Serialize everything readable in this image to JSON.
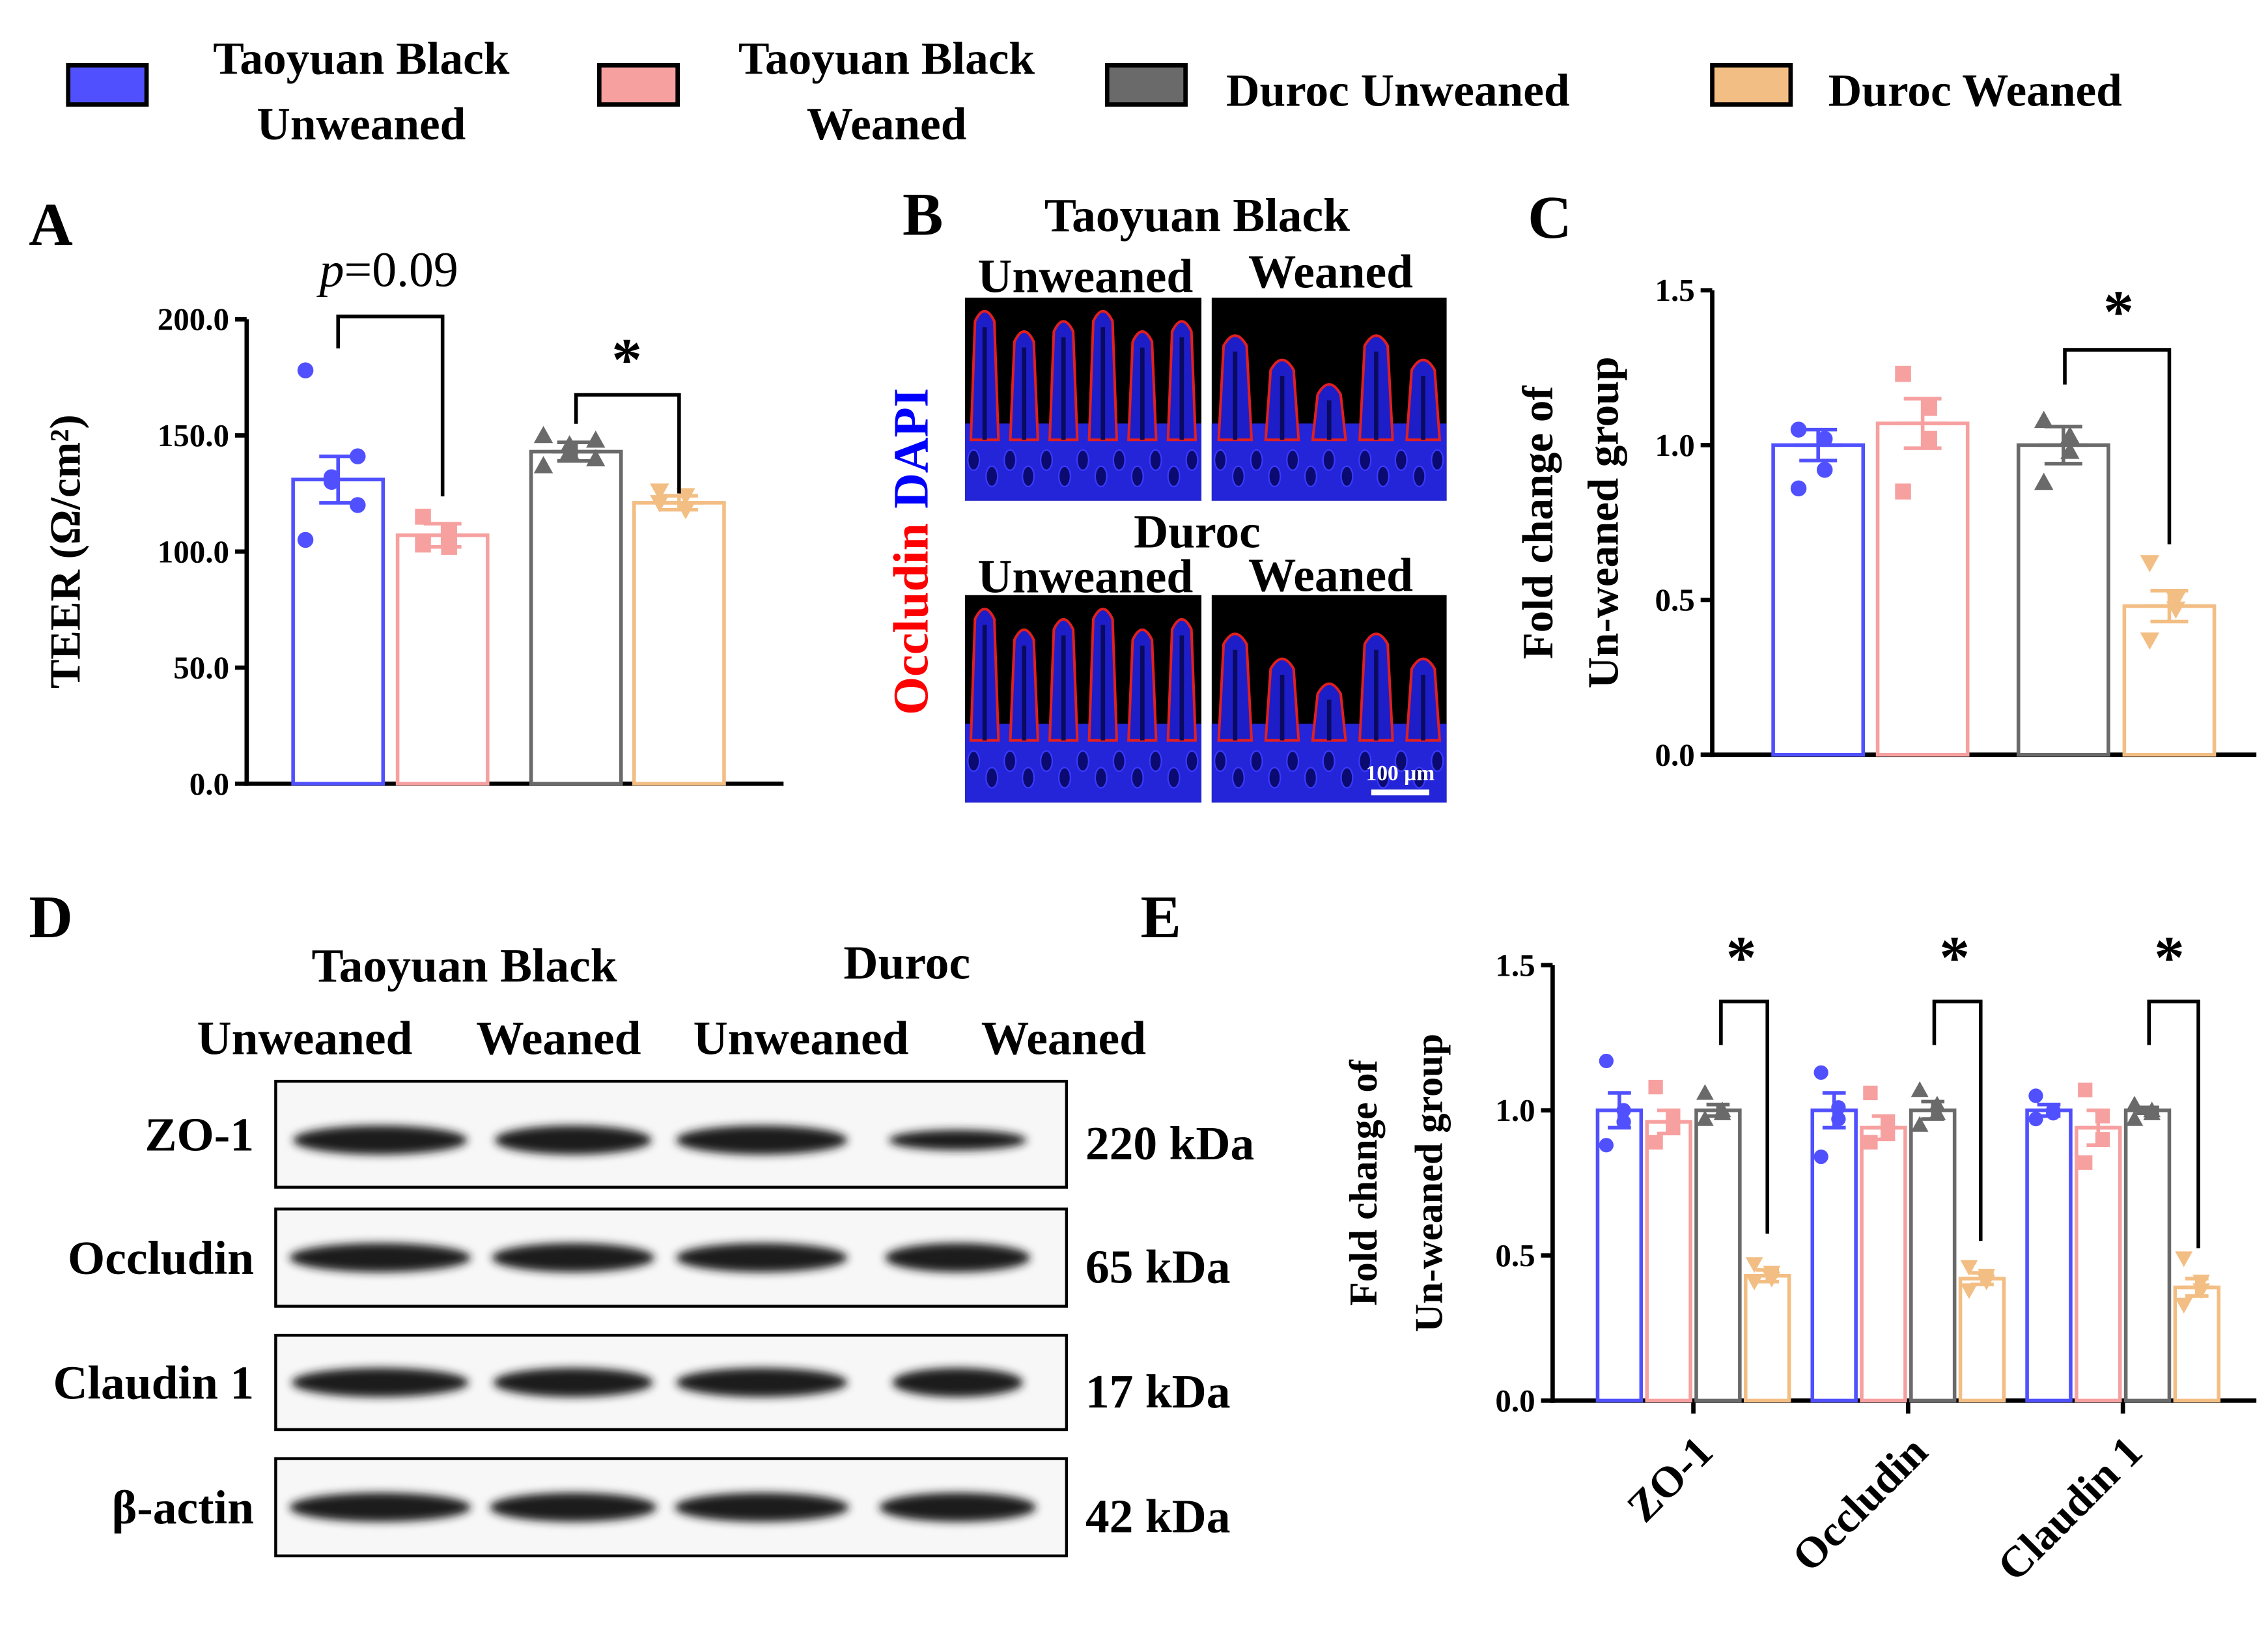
{
  "legend": {
    "series": [
      {
        "name": "Taoyuan Black Unweaned",
        "color": "#5050ff"
      },
      {
        "name": "Taoyuan Black Weaned",
        "color": "#f7a0a0"
      },
      {
        "name": "Duroc Unweaned",
        "color": "#6a6a6a"
      },
      {
        "name": "Duroc Weaned",
        "color": "#f3be84"
      }
    ]
  },
  "panels": [
    "A",
    "B",
    "C",
    "D",
    "E"
  ],
  "chart_data": [
    {
      "type": "bar",
      "ylabel": "TEER (Ω/cm²)",
      "ylim": [
        0,
        200
      ],
      "yticks": [
        {
          "value": 0,
          "label": "0.0"
        },
        {
          "value": 50,
          "label": "50.0"
        },
        {
          "value": 100,
          "label": "100.0"
        },
        {
          "value": 150,
          "label": "150.0"
        },
        {
          "value": 200,
          "label": "200.0"
        }
      ],
      "series": [
        {
          "values": [
            131
          ],
          "errors": [
            10
          ],
          "points": [
            [
              178,
              141,
              132,
              130,
              120,
              105
            ]
          ]
        },
        {
          "values": [
            107
          ],
          "errors": [
            5
          ],
          "points": [
            [
              115,
              108,
              102,
              103
            ]
          ]
        },
        {
          "values": [
            143
          ],
          "errors": [
            4
          ],
          "points": [
            [
              150,
              148,
              146,
              143,
              140,
              137
            ]
          ]
        },
        {
          "values": [
            121
          ],
          "errors": [
            3
          ],
          "points": [
            [
              126,
              124,
              118,
              121
            ]
          ]
        }
      ],
      "annotations": [
        {
          "italic": "p",
          "text": "=0.09"
        },
        {
          "text": "*"
        }
      ]
    },
    {
      "type": "bar",
      "ylabel": [
        "Fold change of",
        "Un-weaned group"
      ],
      "ylim": [
        0,
        1.5
      ],
      "yticks": [
        {
          "value": 0,
          "label": "0.0"
        },
        {
          "value": 0.5,
          "label": "0.5"
        },
        {
          "value": 1,
          "label": "1.0"
        },
        {
          "value": 1.5,
          "label": "1.5"
        }
      ],
      "series": [
        {
          "values": [
            1.0
          ],
          "errors": [
            0.05
          ],
          "points": [
            [
              1.05,
              1.02,
              0.92,
              0.86
            ]
          ]
        },
        {
          "values": [
            1.07
          ],
          "errors": [
            0.08
          ],
          "points": [
            [
              1.23,
              1.12,
              1.02,
              0.85
            ]
          ]
        },
        {
          "values": [
            1.0
          ],
          "errors": [
            0.06
          ],
          "points": [
            [
              1.08,
              1.03,
              0.98,
              0.88
            ]
          ]
        },
        {
          "values": [
            0.48
          ],
          "errors": [
            0.05
          ],
          "points": [
            [
              0.62,
              0.5,
              0.47,
              0.37
            ]
          ]
        }
      ],
      "annotations": [
        {
          "text": "*"
        }
      ]
    },
    {
      "type": "bar",
      "ylabel": [
        "Fold change of",
        "Un-weaned group"
      ],
      "ylim": [
        0,
        1.5
      ],
      "yticks": [
        {
          "value": 0,
          "label": "0.0"
        },
        {
          "value": 0.5,
          "label": "0.5"
        },
        {
          "value": 1,
          "label": "1.0"
        },
        {
          "value": 1.5,
          "label": "1.5"
        }
      ],
      "categories": [
        "ZO-1",
        "Occludin",
        "Claudin 1"
      ],
      "series": [
        {
          "values": [
            1.0,
            1.0,
            1.0
          ],
          "errors": [
            0.06,
            0.06,
            0.02
          ],
          "points": [
            [
              1.17,
              1.0,
              0.96,
              0.88
            ],
            [
              1.13,
              1.01,
              0.97,
              0.84
            ],
            [
              1.05,
              1.0,
              0.99,
              0.97
            ]
          ]
        },
        {
          "values": [
            0.96,
            0.94,
            0.94
          ],
          "errors": [
            0.04,
            0.04,
            0.06
          ],
          "points": [
            [
              1.08,
              0.98,
              0.94,
              0.89
            ],
            [
              1.06,
              0.95,
              0.92,
              0.89
            ],
            [
              1.07,
              0.98,
              0.9,
              0.82
            ]
          ]
        },
        {
          "values": [
            1.0,
            1.0,
            1.0
          ],
          "errors": [
            0.02,
            0.03,
            0.01
          ],
          "points": [
            [
              1.06,
              1.0,
              0.99,
              0.97
            ],
            [
              1.07,
              1.02,
              0.99,
              0.95
            ],
            [
              1.02,
              1.0,
              0.99,
              0.97
            ]
          ]
        },
        {
          "values": [
            0.43,
            0.42,
            0.39
          ],
          "errors": [
            0.02,
            0.02,
            0.03
          ],
          "points": [
            [
              0.47,
              0.44,
              0.42,
              0.41
            ],
            [
              0.46,
              0.43,
              0.41,
              0.38
            ],
            [
              0.49,
              0.41,
              0.38,
              0.33
            ]
          ]
        }
      ],
      "annotations": [
        {
          "text": "*"
        },
        {
          "text": "*"
        },
        {
          "text": "*"
        }
      ]
    }
  ],
  "micrograph": {
    "stain": [
      "Occludin",
      "DAPI"
    ],
    "groups": [
      {
        "title": "Taoyuan Black",
        "columns": [
          "Unweaned",
          "Weaned"
        ]
      },
      {
        "title": "Duroc",
        "columns": [
          "Unweaned",
          "Weaned"
        ]
      }
    ],
    "scale_bar": "100 µm"
  },
  "western_blot": {
    "groups": [
      {
        "title": "Taoyuan Black",
        "lanes": [
          "Unweaned",
          "Weaned"
        ]
      },
      {
        "title": "Duroc",
        "lanes": [
          "Unweaned",
          "Weaned"
        ]
      }
    ],
    "rows": [
      {
        "protein": "ZO-1",
        "size": "220 kDa"
      },
      {
        "protein": "Occludin",
        "size": "65 kDa"
      },
      {
        "protein": "Claudin 1",
        "size": "17 kDa"
      },
      {
        "protein": "β-actin",
        "size": "42 kDa"
      }
    ]
  }
}
